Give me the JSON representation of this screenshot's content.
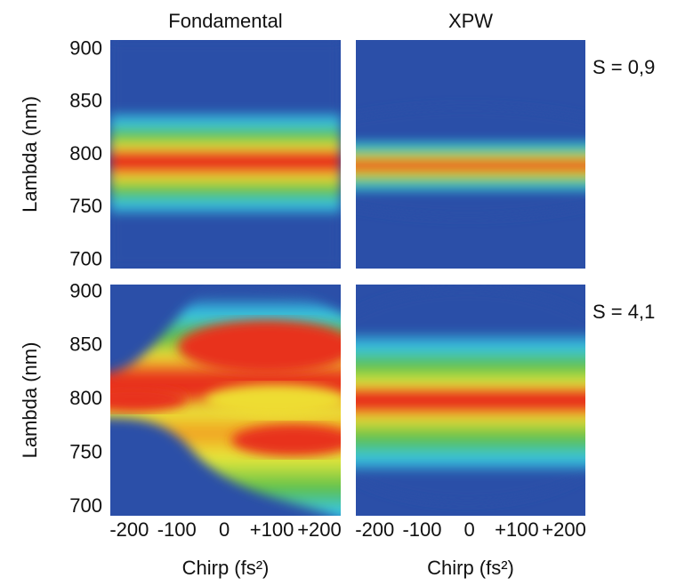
{
  "chart_data": [
    {
      "type": "heatmap",
      "title": "Fondamental",
      "ylabel": "Lambda (nm)",
      "xlim": [
        -240,
        245
      ],
      "ylim": [
        692,
        909
      ],
      "yticks": [
        700,
        750,
        800,
        850,
        900
      ]
    },
    {
      "type": "heatmap",
      "title": "XPW",
      "annotation": "S = 0,9",
      "xlim": [
        -240,
        245
      ],
      "ylim": [
        692,
        909
      ]
    },
    {
      "type": "heatmap",
      "ylabel": "Lambda (nm)",
      "xlabel": "Chirp (fs²)",
      "xlim": [
        -240,
        245
      ],
      "ylim": [
        692,
        907
      ],
      "yticks": [
        700,
        750,
        800,
        850,
        900
      ],
      "xticks": [
        -200,
        -100,
        0,
        {
          "value": 100,
          "label": "+100"
        },
        {
          "value": 200,
          "label": "+200"
        }
      ]
    },
    {
      "type": "heatmap",
      "xlabel": "Chirp (fs²)",
      "annotation": "S = 4,1",
      "xlim": [
        -240,
        245
      ],
      "ylim": [
        692,
        907
      ],
      "xticks": [
        -200,
        -100,
        0,
        {
          "value": 100,
          "label": "+100"
        },
        {
          "value": 200,
          "label": "+200"
        }
      ]
    }
  ]
}
